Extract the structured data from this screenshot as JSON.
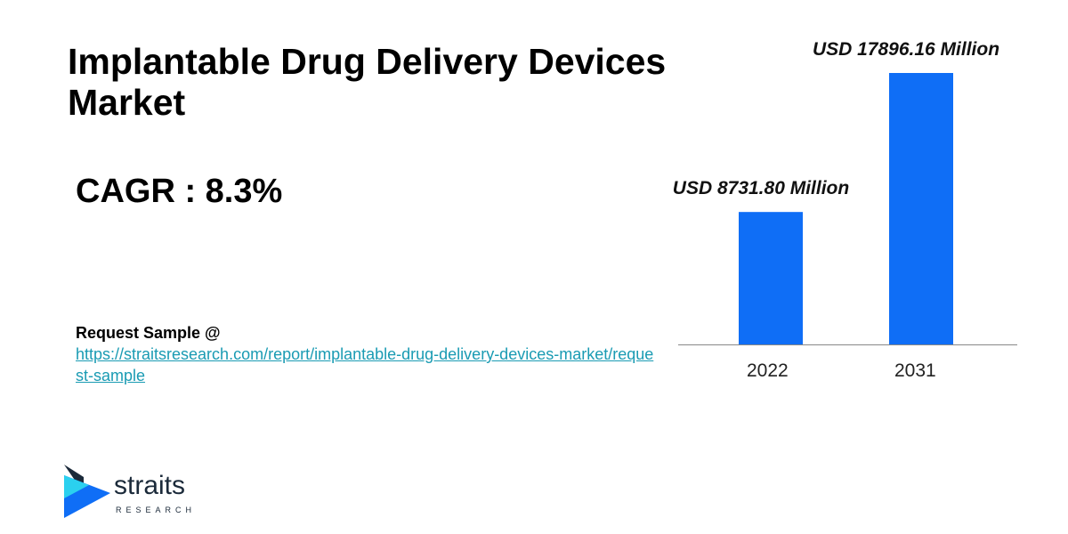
{
  "title": "Implantable Drug Delivery Devices Market",
  "cagr": "CAGR : 8.3%",
  "request": {
    "label": "Request Sample @",
    "link": "https://straitsresearch.com/report/implantable-drug-delivery-devices-market/request-sample"
  },
  "logo": {
    "word": "straits",
    "sub": "RESEARCH",
    "icon": "straits-arrow-logo-icon"
  },
  "colors": {
    "bar": "#0f6ef6",
    "link": "#1a9bb3",
    "axis": "#888888"
  },
  "chart_data": {
    "type": "bar",
    "categories": [
      "2022",
      "2031"
    ],
    "values": [
      8731.8,
      17896.16
    ],
    "data_labels": [
      "USD 8731.80 Million",
      "USD 17896.16 Million"
    ],
    "title": "",
    "xlabel": "",
    "ylabel": "",
    "ylim": [
      0,
      17896.16
    ],
    "grid": false,
    "legend": "none"
  }
}
